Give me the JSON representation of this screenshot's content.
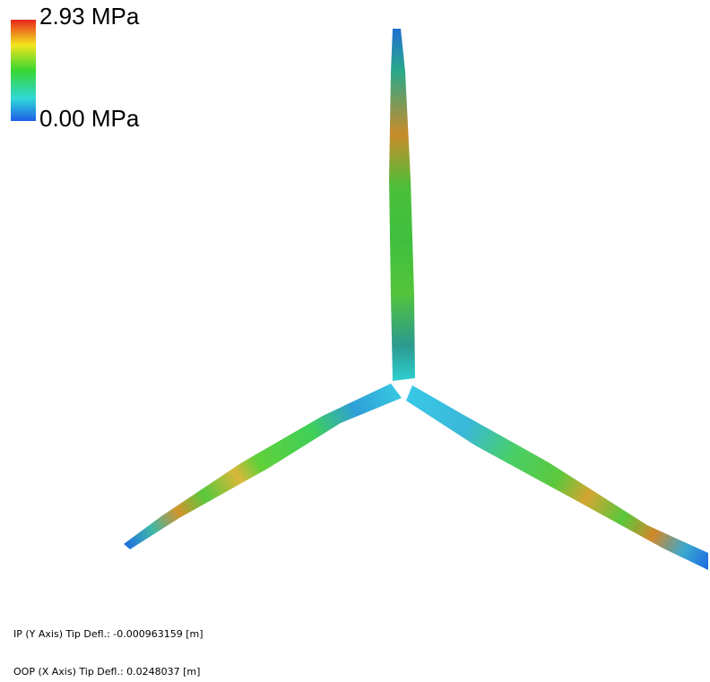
{
  "legend": {
    "max_label": "2.93 MPa",
    "min_label": "0.00 MPa"
  },
  "info": {
    "ip_tip_deflection": "IP (Y Axis) Tip Defl.: -0.000963159 [m]",
    "oop_tip_deflection": "OOP (X Axis) Tip Defl.: 0.0248037 [m]"
  }
}
